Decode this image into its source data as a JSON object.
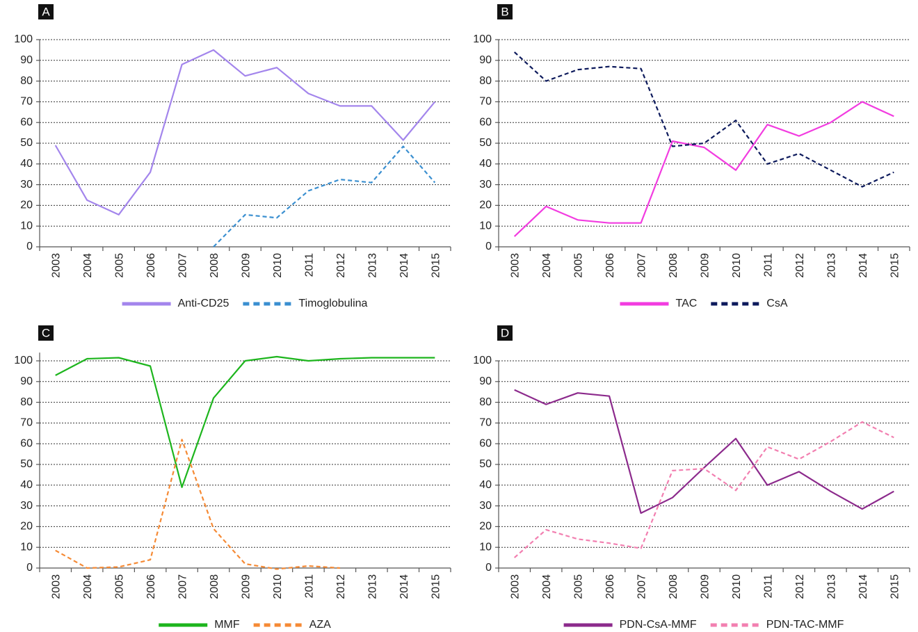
{
  "chart_data": [
    {
      "type": "line",
      "panel_label": "A",
      "categories": [
        "2003",
        "2004",
        "2005",
        "2006",
        "2007",
        "2008",
        "2009",
        "2010",
        "2011",
        "2012",
        "2013",
        "2014",
        "2015"
      ],
      "ylim": [
        0,
        100
      ],
      "yticks": [
        0,
        10,
        20,
        30,
        40,
        50,
        60,
        70,
        80,
        90,
        100
      ],
      "grid": true,
      "series": [
        {
          "name": "Anti-CD25",
          "color": "#a385ec",
          "dashed": false,
          "values": [
            49,
            22.5,
            15.5,
            36,
            88,
            95,
            82.5,
            86.5,
            74,
            68,
            68,
            51.5,
            70
          ]
        },
        {
          "name": "Timoglobulina",
          "color": "#3a8fd0",
          "dashed": true,
          "values": [
            null,
            null,
            null,
            null,
            null,
            0,
            15.5,
            14,
            27,
            32.5,
            31,
            48.5,
            31
          ]
        }
      ]
    },
    {
      "type": "line",
      "panel_label": "B",
      "categories": [
        "2003",
        "2004",
        "2005",
        "2006",
        "2007",
        "2008",
        "2009",
        "2010",
        "2011",
        "2012",
        "2013",
        "2014",
        "2015"
      ],
      "ylim": [
        0,
        100
      ],
      "yticks": [
        0,
        10,
        20,
        30,
        40,
        50,
        60,
        70,
        80,
        90,
        100
      ],
      "grid": true,
      "series": [
        {
          "name": "TAC",
          "color": "#f23ce0",
          "dashed": false,
          "values": [
            5,
            19.5,
            13,
            11.5,
            11.5,
            51,
            48,
            37,
            59,
            53.5,
            60,
            70,
            63
          ]
        },
        {
          "name": "CsA",
          "color": "#0d1a5c",
          "dashed": true,
          "values": [
            94,
            80,
            85.5,
            87,
            86,
            48.5,
            50,
            61,
            40,
            45,
            37,
            29,
            36
          ]
        }
      ]
    },
    {
      "type": "line",
      "panel_label": "C",
      "categories": [
        "2003",
        "2004",
        "2005",
        "2006",
        "2007",
        "2008",
        "2009",
        "2010",
        "2011",
        "2012",
        "2013",
        "2014",
        "2015"
      ],
      "ylim": [
        0,
        104
      ],
      "yticks": [
        0,
        10,
        20,
        30,
        40,
        50,
        60,
        70,
        80,
        90,
        100
      ],
      "grid": true,
      "series": [
        {
          "name": "MMF",
          "color": "#1db51d",
          "dashed": false,
          "values": [
            93,
            101,
            101.5,
            97.5,
            39,
            82,
            100,
            102,
            100,
            101,
            101.5,
            101.5,
            101.5
          ]
        },
        {
          "name": "AZA",
          "color": "#f58a35",
          "dashed": true,
          "values": [
            8.5,
            0,
            0.5,
            4,
            62,
            19,
            2,
            -0.5,
            1,
            0,
            null,
            null,
            null
          ]
        }
      ]
    },
    {
      "type": "line",
      "panel_label": "D",
      "categories": [
        "2003",
        "2004",
        "2005",
        "2006",
        "2007",
        "2008",
        "2009",
        "2010",
        "2011",
        "2012",
        "2013",
        "2014",
        "2015"
      ],
      "ylim": [
        0,
        100
      ],
      "yticks": [
        0,
        10,
        20,
        30,
        40,
        50,
        60,
        70,
        80,
        90,
        100
      ],
      "grid": true,
      "series": [
        {
          "name": "PDN-CsA-MMF",
          "color": "#8c2a8c",
          "dashed": false,
          "values": [
            86,
            79,
            84.5,
            83,
            26.5,
            34,
            48.5,
            62.5,
            40,
            46.5,
            37,
            28.5,
            37
          ]
        },
        {
          "name": "PDN-TAC-MMF",
          "color": "#f27fb0",
          "dashed": true,
          "values": [
            5,
            18.5,
            14,
            12,
            9.5,
            47,
            48,
            37.5,
            58.5,
            52.5,
            61,
            70.5,
            63
          ]
        }
      ]
    }
  ]
}
